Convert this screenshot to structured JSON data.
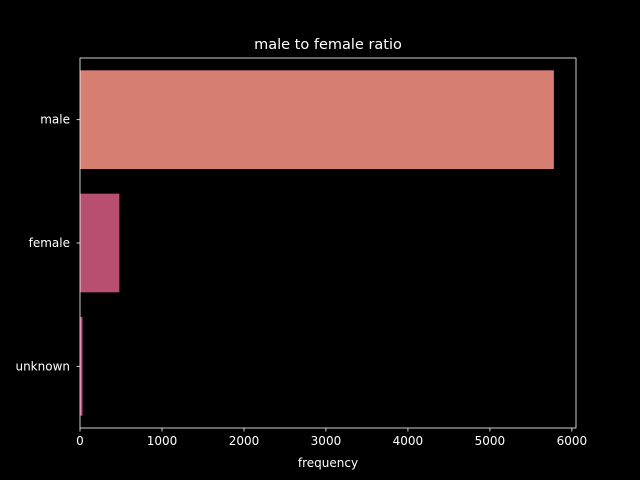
{
  "chart_data": {
    "type": "bar",
    "orientation": "horizontal",
    "title": "male to female ratio",
    "xlabel": "frequency",
    "ylabel": "",
    "categories": [
      "male",
      "female",
      "unknown"
    ],
    "values": [
      5780,
      480,
      30
    ],
    "colors": [
      "#d77f72",
      "#b94f6e",
      "#c24a88"
    ],
    "xlim": [
      0,
      6050
    ],
    "xticks": [
      0,
      1000,
      2000,
      3000,
      4000,
      5000,
      6000
    ],
    "grid": false,
    "legend": "none"
  }
}
